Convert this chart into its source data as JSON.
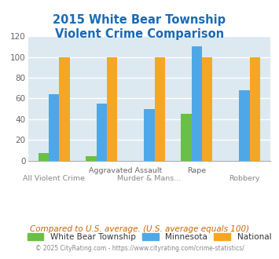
{
  "title": "2015 White Bear Township\nViolent Crime Comparison",
  "white_bear": [
    7,
    4,
    null,
    45,
    null
  ],
  "minnesota": [
    64,
    55,
    50,
    110,
    68
  ],
  "national": [
    100,
    100,
    100,
    100,
    100
  ],
  "colors": {
    "white_bear": "#6abf45",
    "minnesota": "#4ea8e8",
    "national": "#f5a623"
  },
  "ylim": [
    0,
    120
  ],
  "yticks": [
    0,
    20,
    40,
    60,
    80,
    100,
    120
  ],
  "title_color": "#1a6ab5",
  "background_color": "#dce9f0",
  "grid_color": "#ffffff",
  "legend_labels": [
    "White Bear Township",
    "Minnesota",
    "National"
  ],
  "label_top": [
    "",
    "Aggravated Assault",
    "",
    "Rape",
    ""
  ],
  "label_bot": [
    "All Violent Crime",
    "Murder & Mans...",
    "",
    "",
    "Robbery"
  ],
  "footnote1": "Compared to U.S. average. (U.S. average equals 100)",
  "footnote2": "© 2025 CityRating.com - https://www.cityrating.com/crime-statistics/",
  "footnote1_color": "#cc6600",
  "footnote2_color": "#888888",
  "n_groups": 5,
  "bar_width": 0.22
}
